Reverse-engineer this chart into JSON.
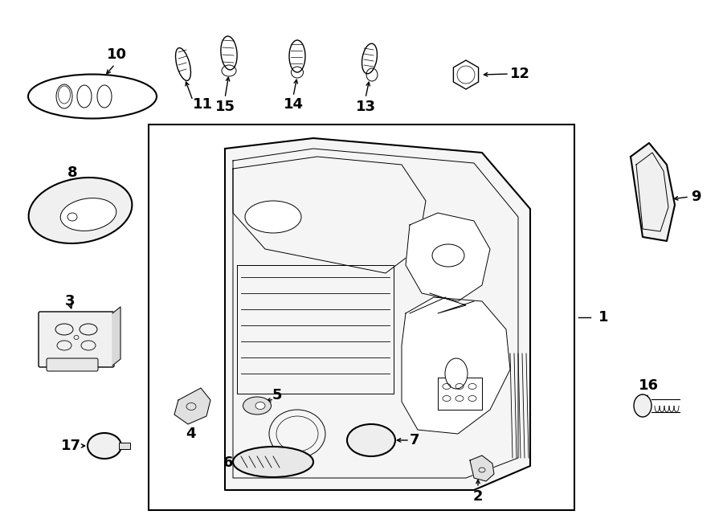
{
  "bg_color": "#ffffff",
  "line_color": "#000000",
  "figw": 9.0,
  "figh": 6.61,
  "dpi": 100
}
